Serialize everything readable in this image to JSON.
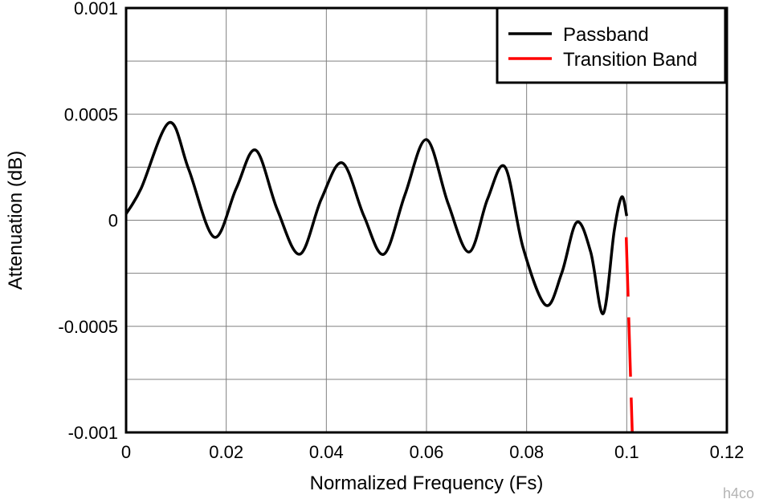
{
  "chart_data": {
    "type": "line",
    "title": "",
    "xlabel": "Normalized Frequency (Fs)",
    "ylabel": "Attenuation (dB)",
    "xlim": [
      0,
      0.12
    ],
    "ylim": [
      -0.001,
      0.001
    ],
    "xticks": [
      0,
      0.02,
      0.04,
      0.06,
      0.08,
      0.1,
      0.12
    ],
    "xtick_labels": [
      "0",
      "0.02",
      "0.04",
      "0.06",
      "0.08",
      "0.1",
      "0.12"
    ],
    "yticks": [
      -0.001,
      -0.0005,
      0,
      0.0005,
      0.001
    ],
    "ytick_labels": [
      "-0.001",
      "-0.0005",
      "0",
      "0.0005",
      "0.001"
    ],
    "grid": true,
    "legend_position": "top-right",
    "series": [
      {
        "name": "Passband",
        "color": "#000000",
        "style": "solid",
        "x": [
          0,
          0.003,
          0.0086,
          0.0125,
          0.0176,
          0.022,
          0.0259,
          0.0302,
          0.0347,
          0.039,
          0.0432,
          0.0475,
          0.0515,
          0.0557,
          0.06,
          0.0643,
          0.0685,
          0.0722,
          0.0757,
          0.0793,
          0.0838,
          0.087,
          0.09,
          0.0928,
          0.0953,
          0.0975,
          0.099,
          0.1
        ],
        "y": [
          3e-05,
          0.00015,
          0.00046,
          0.00024,
          -8e-05,
          0.00015,
          0.00033,
          5e-05,
          -0.00016,
          0.0001,
          0.00027,
          2e-05,
          -0.00016,
          0.00012,
          0.00038,
          8e-05,
          -0.00015,
          0.0001,
          0.00025,
          -0.00013,
          -0.0004,
          -0.00025,
          -1e-05,
          -0.00015,
          -0.00044,
          -5e-05,
          0.00011,
          2e-05
        ]
      },
      {
        "name": "Transition Band",
        "color": "#ff0000",
        "style": "dashed",
        "x": [
          0.0999,
          0.10045,
          0.1011
        ],
        "y": [
          -8e-05,
          -0.0005,
          -0.001
        ]
      }
    ]
  },
  "watermark": "h4co"
}
